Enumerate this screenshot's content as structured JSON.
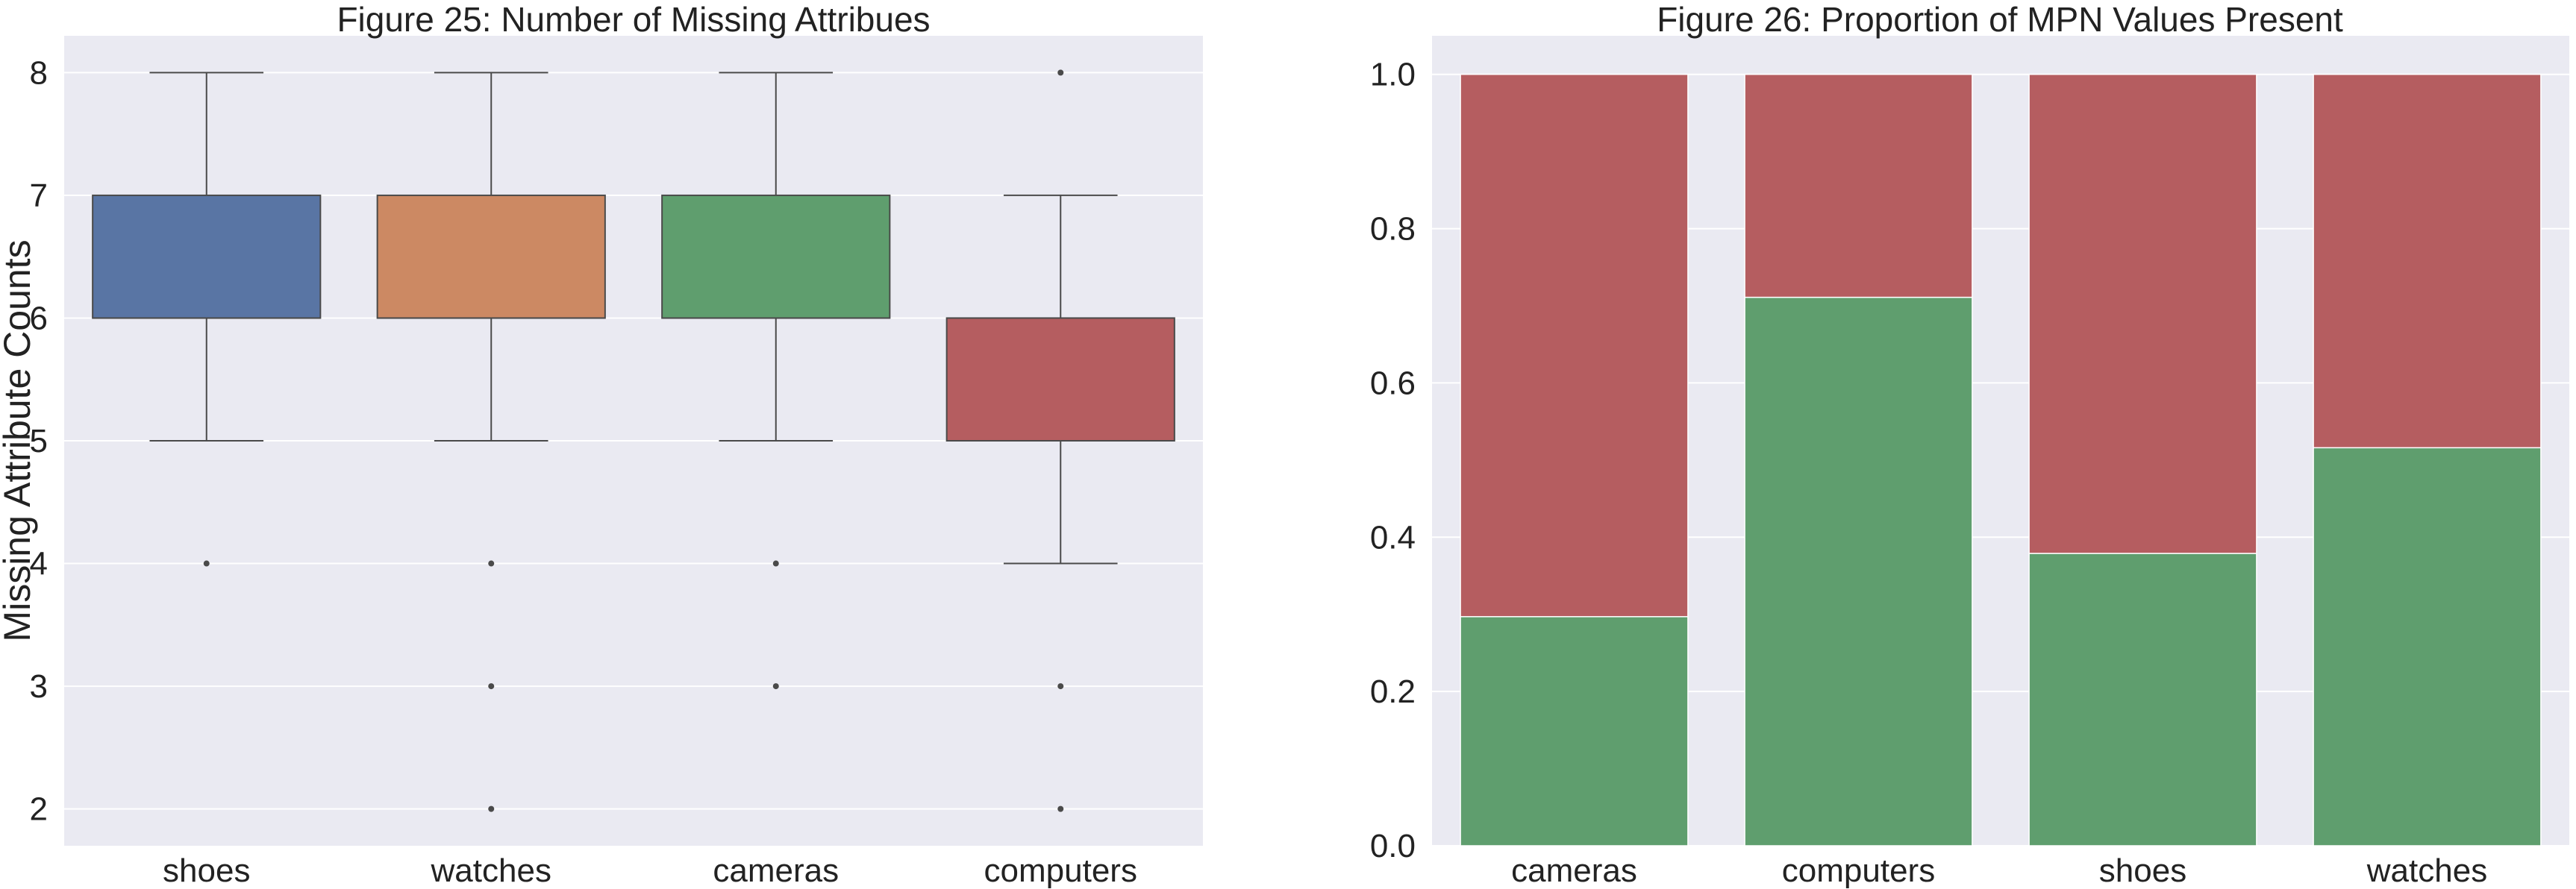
{
  "chart_data": [
    {
      "type": "box",
      "title": "Figure 25: Number of Missing Attribues",
      "xlabel": "",
      "ylabel": "Missing Attribute Counts",
      "categories": [
        "shoes",
        "watches",
        "cameras",
        "computers"
      ],
      "ylim": [
        1.7,
        8.3
      ],
      "yticks": [
        2,
        3,
        4,
        5,
        6,
        7,
        8
      ],
      "grid": true,
      "boxes": [
        {
          "category": "shoes",
          "whisker_low": 5,
          "q1": 6,
          "median": 6,
          "q3": 7,
          "whisker_high": 8,
          "fliers": [
            4
          ],
          "color": "#5975a4"
        },
        {
          "category": "watches",
          "whisker_low": 5,
          "q1": 6,
          "median": 6,
          "q3": 7,
          "whisker_high": 8,
          "fliers": [
            4,
            3,
            2
          ],
          "color": "#cc8963"
        },
        {
          "category": "cameras",
          "whisker_low": 5,
          "q1": 6,
          "median": 6,
          "q3": 7,
          "whisker_high": 8,
          "fliers": [
            4,
            3
          ],
          "color": "#5f9e6e"
        },
        {
          "category": "computers",
          "whisker_low": 4,
          "q1": 5,
          "median": 6,
          "q3": 6,
          "whisker_high": 7,
          "fliers": [
            8,
            3,
            2
          ],
          "color": "#b55d60"
        }
      ]
    },
    {
      "type": "bar",
      "stacked": true,
      "title": "Figure 26: Proportion of MPN Values Present",
      "xlabel": "",
      "ylabel": "",
      "categories": [
        "cameras",
        "computers",
        "shoes",
        "watches"
      ],
      "ylim": [
        0,
        1.05
      ],
      "yticks": [
        "0.0",
        "0.2",
        "0.4",
        "0.6",
        "0.8",
        "1.0"
      ],
      "grid": true,
      "series": [
        {
          "values": [
            0.297,
            0.711,
            0.379,
            0.516
          ],
          "color": "#5f9e6e"
        },
        {
          "values": [
            0.703,
            0.289,
            0.621,
            0.484
          ],
          "color": "#b55d60"
        }
      ]
    }
  ]
}
